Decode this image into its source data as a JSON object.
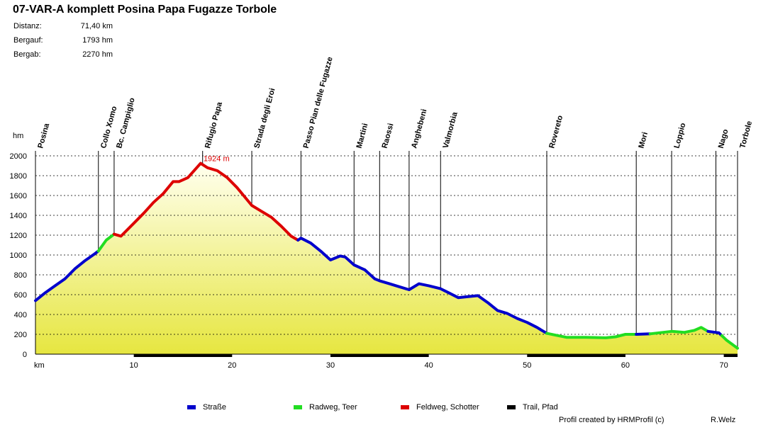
{
  "chart_data": {
    "type": "area",
    "title": "07-VAR-A komplett Posina Papa Fugazze Torbole",
    "stats": [
      {
        "label": "Distanz:",
        "value": "71,40 km"
      },
      {
        "label": "Bergauf:",
        "value": "1793 hm"
      },
      {
        "label": "Bergab:",
        "value": "2270 hm"
      }
    ],
    "xlabel": "km",
    "ylabel": "hm",
    "xlim": [
      0,
      71.4
    ],
    "ylim": [
      0,
      2000
    ],
    "x_ticks": [
      10,
      20,
      30,
      40,
      50,
      60,
      70
    ],
    "y_ticks": [
      0,
      200,
      400,
      600,
      800,
      1000,
      1200,
      1400,
      1600,
      1800,
      2000
    ],
    "peak_annotation": {
      "x": 16.8,
      "y": 1924,
      "label": "1924 m"
    },
    "waypoints": [
      {
        "name": "Posina",
        "km": 0
      },
      {
        "name": "Collo Xomo",
        "km": 6.4
      },
      {
        "name": "Bc. Campiglio",
        "km": 8.0
      },
      {
        "name": "Rifugio Papa",
        "km": 17.0
      },
      {
        "name": "Strada degli Eroi",
        "km": 22.0
      },
      {
        "name": "Passo Pian delle Fugazze",
        "km": 27.0
      },
      {
        "name": "Martini",
        "km": 32.4
      },
      {
        "name": "Raossi",
        "km": 35.0
      },
      {
        "name": "Anghebeni",
        "km": 38.0
      },
      {
        "name": "Valmorbia",
        "km": 41.2
      },
      {
        "name": "Rovereto",
        "km": 52.0
      },
      {
        "name": "Mori",
        "km": 61.1
      },
      {
        "name": "Loppio",
        "km": 64.7
      },
      {
        "name": "Nago",
        "km": 69.2
      },
      {
        "name": "Torbole",
        "km": 71.4
      }
    ],
    "profile": [
      {
        "km": 0,
        "ele": 540
      },
      {
        "km": 1,
        "ele": 620
      },
      {
        "km": 2,
        "ele": 690
      },
      {
        "km": 3,
        "ele": 760
      },
      {
        "km": 4,
        "ele": 860
      },
      {
        "km": 5,
        "ele": 940
      },
      {
        "km": 6,
        "ele": 1010
      },
      {
        "km": 6.4,
        "ele": 1040
      },
      {
        "km": 7.2,
        "ele": 1150
      },
      {
        "km": 8,
        "ele": 1210
      },
      {
        "km": 8.7,
        "ele": 1190
      },
      {
        "km": 10,
        "ele": 1320
      },
      {
        "km": 11,
        "ele": 1420
      },
      {
        "km": 12,
        "ele": 1530
      },
      {
        "km": 13,
        "ele": 1620
      },
      {
        "km": 14,
        "ele": 1740
      },
      {
        "km": 14.6,
        "ele": 1740
      },
      {
        "km": 15.5,
        "ele": 1780
      },
      {
        "km": 16.8,
        "ele": 1924
      },
      {
        "km": 17.5,
        "ele": 1880
      },
      {
        "km": 18.5,
        "ele": 1850
      },
      {
        "km": 19.5,
        "ele": 1780
      },
      {
        "km": 20.5,
        "ele": 1680
      },
      {
        "km": 21.5,
        "ele": 1560
      },
      {
        "km": 22,
        "ele": 1500
      },
      {
        "km": 23,
        "ele": 1440
      },
      {
        "km": 24,
        "ele": 1380
      },
      {
        "km": 25,
        "ele": 1290
      },
      {
        "km": 26,
        "ele": 1190
      },
      {
        "km": 26.7,
        "ele": 1150
      },
      {
        "km": 27,
        "ele": 1170
      },
      {
        "km": 28,
        "ele": 1120
      },
      {
        "km": 29,
        "ele": 1040
      },
      {
        "km": 30,
        "ele": 950
      },
      {
        "km": 31,
        "ele": 990
      },
      {
        "km": 31.5,
        "ele": 980
      },
      {
        "km": 32.4,
        "ele": 900
      },
      {
        "km": 33.5,
        "ele": 850
      },
      {
        "km": 34.5,
        "ele": 760
      },
      {
        "km": 35,
        "ele": 740
      },
      {
        "km": 36,
        "ele": 710
      },
      {
        "km": 37,
        "ele": 680
      },
      {
        "km": 38,
        "ele": 650
      },
      {
        "km": 39,
        "ele": 710
      },
      {
        "km": 40,
        "ele": 690
      },
      {
        "km": 41.2,
        "ele": 660
      },
      {
        "km": 42,
        "ele": 620
      },
      {
        "km": 43,
        "ele": 570
      },
      {
        "km": 44,
        "ele": 580
      },
      {
        "km": 45,
        "ele": 590
      },
      {
        "km": 46,
        "ele": 520
      },
      {
        "km": 47,
        "ele": 440
      },
      {
        "km": 48,
        "ele": 410
      },
      {
        "km": 49,
        "ele": 360
      },
      {
        "km": 50,
        "ele": 320
      },
      {
        "km": 51,
        "ele": 270
      },
      {
        "km": 52,
        "ele": 210
      },
      {
        "km": 53,
        "ele": 190
      },
      {
        "km": 54,
        "ele": 170
      },
      {
        "km": 56,
        "ele": 170
      },
      {
        "km": 58,
        "ele": 165
      },
      {
        "km": 59,
        "ele": 175
      },
      {
        "km": 60,
        "ele": 200
      },
      {
        "km": 61.1,
        "ele": 200
      },
      {
        "km": 62.5,
        "ele": 205
      },
      {
        "km": 64.7,
        "ele": 230
      },
      {
        "km": 66,
        "ele": 220
      },
      {
        "km": 67,
        "ele": 240
      },
      {
        "km": 67.7,
        "ele": 270
      },
      {
        "km": 68.4,
        "ele": 230
      },
      {
        "km": 69.5,
        "ele": 215
      },
      {
        "km": 70.3,
        "ele": 140
      },
      {
        "km": 71.4,
        "ele": 60
      }
    ],
    "surface_segments": [
      {
        "from_km": 0,
        "to_km": 6.4,
        "type": "road"
      },
      {
        "from_km": 6.4,
        "to_km": 8.0,
        "type": "cycleway"
      },
      {
        "from_km": 8.0,
        "to_km": 26.7,
        "type": "gravel"
      },
      {
        "from_km": 26.7,
        "to_km": 52.0,
        "type": "road"
      },
      {
        "from_km": 52.0,
        "to_km": 61.1,
        "type": "cycleway"
      },
      {
        "from_km": 61.1,
        "to_km": 62.5,
        "type": "road"
      },
      {
        "from_km": 62.5,
        "to_km": 68.4,
        "type": "cycleway"
      },
      {
        "from_km": 68.4,
        "to_km": 69.8,
        "type": "road"
      },
      {
        "from_km": 69.8,
        "to_km": 71.4,
        "type": "cycleway"
      }
    ],
    "bottom_bar_segments": [
      {
        "from_km": 10,
        "to_km": 20
      },
      {
        "from_km": 30,
        "to_km": 40
      },
      {
        "from_km": 50,
        "to_km": 60
      },
      {
        "from_km": 70,
        "to_km": 71.4
      }
    ],
    "legend": [
      {
        "label": "Straße",
        "type": "road",
        "color": "#0000cc"
      },
      {
        "label": "Radweg, Teer",
        "type": "cycleway",
        "color": "#22dd22"
      },
      {
        "label": "Feldweg, Schotter",
        "type": "gravel",
        "color": "#dd0000"
      },
      {
        "label": "Trail, Pfad",
        "type": "trail",
        "color": "#000000"
      }
    ],
    "fill_color_top": "#ffffee",
    "fill_color_bottom": "#e6e640"
  },
  "footer": {
    "credit": "Profil created by HRMProfil (c)",
    "author": "R.Welz"
  }
}
